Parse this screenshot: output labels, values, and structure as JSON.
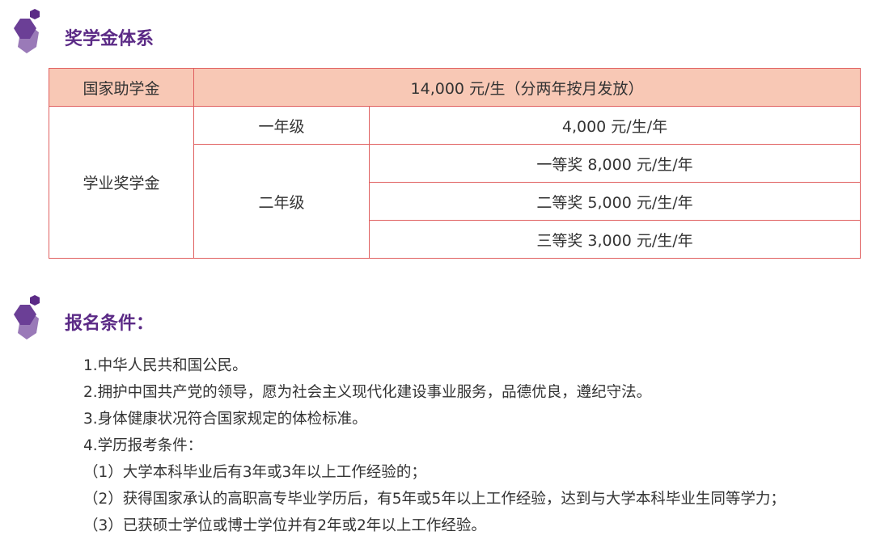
{
  "colors": {
    "accent": "#5b2a86",
    "header_fill": "#f8c8b5",
    "border": "#e06060"
  },
  "section1": {
    "icon": "hexagon-icon",
    "title": "奖学金体系"
  },
  "table": {
    "national": {
      "label": "国家助学金",
      "value": "14,000 元/生（分两年按月发放）"
    },
    "academic": {
      "label": "学业奖学金",
      "year1": {
        "label": "一年级",
        "value": "4,000 元/生/年"
      },
      "year2": {
        "label": "二年级",
        "values": [
          "一等奖 8,000 元/生/年",
          "二等奖 5,000 元/生/年",
          "三等奖 3,000 元/生/年"
        ]
      }
    }
  },
  "section2": {
    "icon": "hexagon-icon",
    "title": "报名条件：",
    "items": [
      "1.中华人民共和国公民。",
      "2.拥护中国共产党的领导，愿为社会主义现代化建设事业服务，品德优良，遵纪守法。",
      "3.身体健康状况符合国家规定的体检标准。",
      "4.学历报考条件：",
      "（1）大学本科毕业后有3年或3年以上工作经验的；",
      "（2）获得国家承认的高职高专毕业学历后，有5年或5年以上工作经验，达到与大学本科毕业生同等学力；",
      "（3）已获硕士学位或博士学位并有2年或2年以上工作经验。"
    ]
  }
}
